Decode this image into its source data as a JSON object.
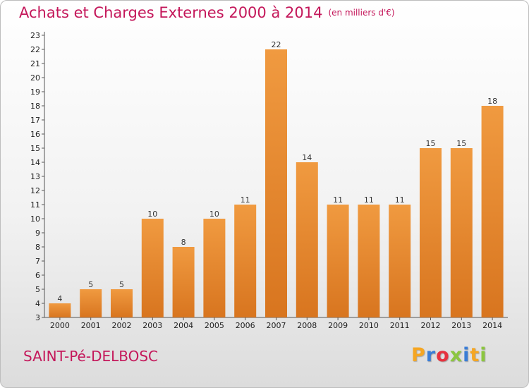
{
  "header": {
    "title": "Achats et Charges Externes 2000 à 2014",
    "subtitle": "(en milliers d'€)"
  },
  "footer": {
    "commune": "SAINT-Pé-DELBOSC",
    "logo_letters": [
      "P",
      "r",
      "o",
      "x",
      "i",
      "t",
      "i"
    ],
    "logo_colors": [
      "#f5a623",
      "#3a7dd6",
      "#e6323e",
      "#8cc63f",
      "#3a7dd6",
      "#f5a623",
      "#8cc63f"
    ]
  },
  "colors": {
    "bar": "#f09a40",
    "bar_dark": "#d8751f",
    "axis": "#555555",
    "grid": "#bbbbbb"
  },
  "chart_data": {
    "type": "bar",
    "categories": [
      "2000",
      "2001",
      "2002",
      "2003",
      "2004",
      "2005",
      "2006",
      "2007",
      "2008",
      "2009",
      "2010",
      "2011",
      "2012",
      "2013",
      "2014"
    ],
    "values": [
      4,
      5,
      5,
      10,
      8,
      10,
      11,
      22,
      14,
      11,
      11,
      11,
      15,
      15,
      18
    ],
    "data_labels": [
      "4",
      "5",
      "5",
      "10",
      "8",
      "10",
      "11",
      "22",
      "14",
      "11",
      "11",
      "11",
      "15",
      "15",
      "18"
    ],
    "y_ticks": [
      "3",
      "4",
      "5",
      "6",
      "7",
      "8",
      "9",
      "10",
      "11",
      "12",
      "13",
      "14",
      "15",
      "16",
      "17",
      "18",
      "19",
      "20",
      "21",
      "22",
      "23"
    ],
    "ylim": [
      3,
      23
    ],
    "grid": false,
    "legend": "none"
  }
}
